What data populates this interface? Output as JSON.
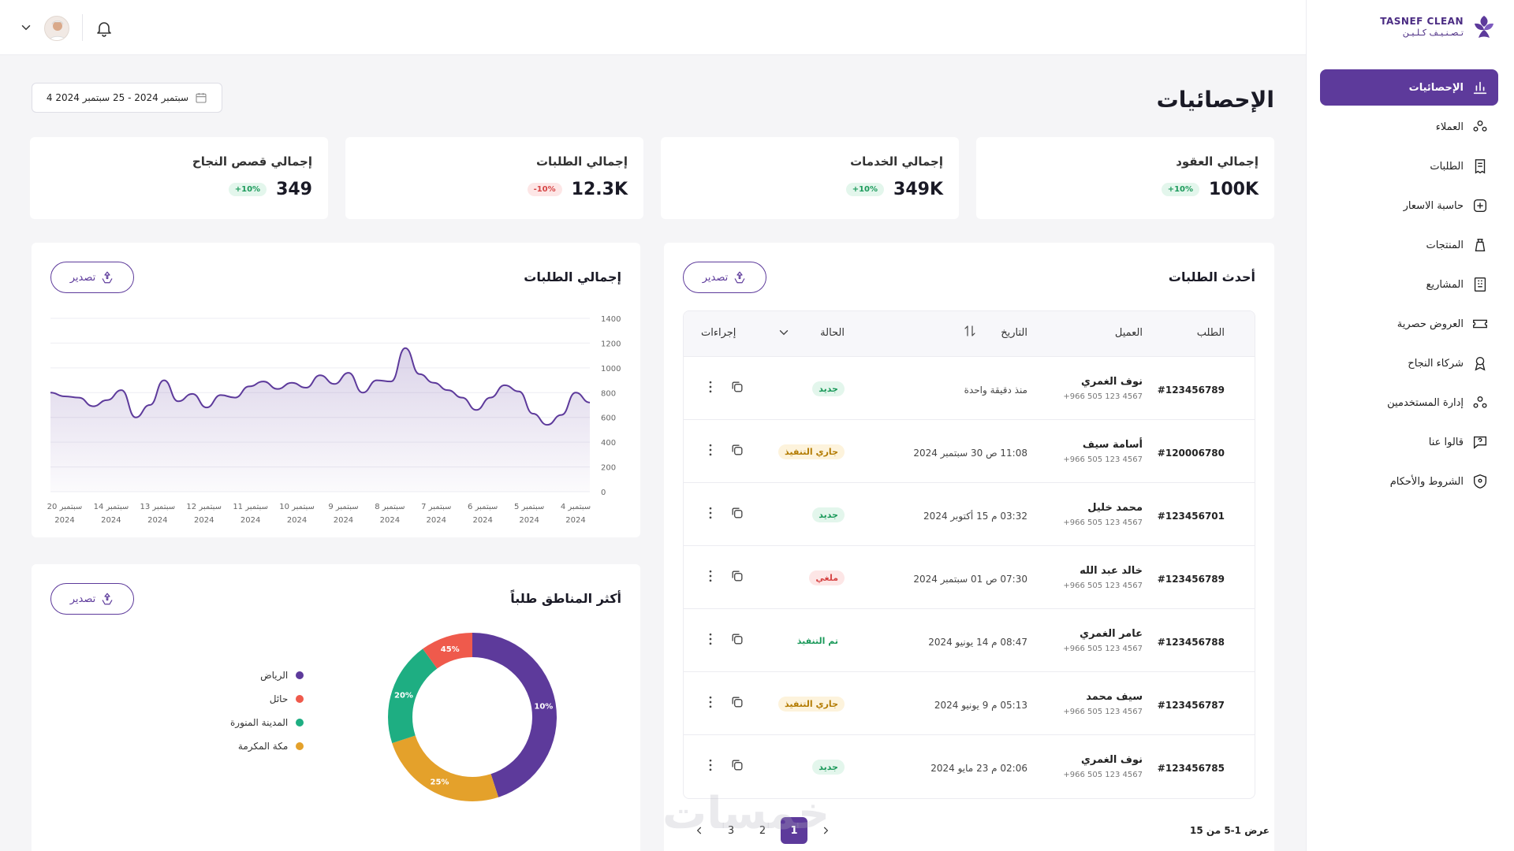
{
  "brand": {
    "name_en": "TASNEF CLEAN",
    "name_ar": "تـصـنـيـف كـلـيـن",
    "accent": "#5d3a9b"
  },
  "sidebar": {
    "items": [
      {
        "label": "الإحصائيات",
        "icon": "bar-chart-icon",
        "active": true
      },
      {
        "label": "العملاء",
        "icon": "users-icon"
      },
      {
        "label": "الطلبات",
        "icon": "receipt-icon"
      },
      {
        "label": "حاسبة الاسعار",
        "icon": "calculator-icon"
      },
      {
        "label": "المنتجات",
        "icon": "spray-bottle-icon"
      },
      {
        "label": "المشاريع",
        "icon": "building-icon"
      },
      {
        "label": "العروض حصرية",
        "icon": "ticket-icon"
      },
      {
        "label": "شركاء النجاح",
        "icon": "award-icon"
      },
      {
        "label": "إدارة المستخدمين",
        "icon": "users-manage-icon"
      },
      {
        "label": "قالوا عنا",
        "icon": "chat-question-icon"
      },
      {
        "label": "الشروط والأحكام",
        "icon": "shield-icon"
      }
    ]
  },
  "header": {
    "title": "الإحصائيات",
    "date_range": "4 سبتمبر 2024 - 25 سبتمبر 2024"
  },
  "kpis": [
    {
      "label": "إجمالي العقود",
      "value": "100K",
      "change": "+10%",
      "trend": "up"
    },
    {
      "label": "إجمالي الخدمات",
      "value": "349K",
      "change": "+10%",
      "trend": "up"
    },
    {
      "label": "إجمالي الطلبات",
      "value": "12.3K",
      "change": "-10%",
      "trend": "down"
    },
    {
      "label": "إجمالي قصص النجاح",
      "value": "349",
      "change": "+10%",
      "trend": "up"
    }
  ],
  "export_label": "تصدير",
  "orders_card": {
    "title": "أحدث الطلبات",
    "columns": {
      "id": "الطلب",
      "client": "العميل",
      "date": "التاريخ",
      "status": "الحالة",
      "actions": "إجراءات"
    },
    "rows": [
      {
        "id": "#123456789",
        "name": "نوف الغمري",
        "phone": "+966 505 123 4567",
        "date": "منذ دقيقة واحدة",
        "status": "جديد",
        "status_type": "new"
      },
      {
        "id": "#120006780",
        "name": "أسامة سيف",
        "phone": "+966 505 123 4567",
        "date": "11:08 ص 30 سبتمبر 2024",
        "status": "جاري التنفيذ",
        "status_type": "progress"
      },
      {
        "id": "#123456701",
        "name": "محمد خليل",
        "phone": "+966 505 123 4567",
        "date": "03:32 م 15 أكتوبر 2024",
        "status": "جديد",
        "status_type": "new"
      },
      {
        "id": "#123456789",
        "name": "خالد عبد الله",
        "phone": "+966 505 123 4567",
        "date": "07:30 ص 01 سبتمبر 2024",
        "status": "ملغي",
        "status_type": "cancel"
      },
      {
        "id": "#123456788",
        "name": "عامر الغمري",
        "phone": "+966 505 123 4567",
        "date": "08:47 م 14 يونيو 2024",
        "status": "تم التنفيذ",
        "status_type": "done"
      },
      {
        "id": "#123456787",
        "name": "سيف محمد",
        "phone": "+966 505 123 4567",
        "date": "05:13 م 9 يونيو 2024",
        "status": "جاري التنفيذ",
        "status_type": "progress"
      },
      {
        "id": "#123456785",
        "name": "نوف الغمري",
        "phone": "+966 505 123 4567",
        "date": "02:06 م 23 مايو 2024",
        "status": "جديد",
        "status_type": "new"
      }
    ],
    "pagination_info": "عرض 1-5 من 15",
    "pages": [
      "1",
      "2",
      "3"
    ],
    "current_page": "1"
  },
  "chart_data": [
    {
      "type": "area",
      "title": "إجمالي الطلبات",
      "ylim": [
        0,
        1400
      ],
      "yticks": [
        "0",
        "200",
        "400",
        "600",
        "800",
        "1000",
        "1200",
        "1400"
      ],
      "xticks": [
        {
          "day": "4 سبتمبر",
          "year": "2024"
        },
        {
          "day": "5 سبتمبر",
          "year": "2024"
        },
        {
          "day": "6 سبتمبر",
          "year": "2024"
        },
        {
          "day": "7 سبتمبر",
          "year": "2024"
        },
        {
          "day": "8 سبتمبر",
          "year": "2024"
        },
        {
          "day": "9 سبتمبر",
          "year": "2024"
        },
        {
          "day": "10 سبتمبر",
          "year": "2024"
        },
        {
          "day": "11 سبتمبر",
          "year": "2024"
        },
        {
          "day": "12 سبتمبر",
          "year": "2024"
        },
        {
          "day": "13 سبتمبر",
          "year": "2024"
        },
        {
          "day": "14 سبتمبر",
          "year": "2024"
        },
        {
          "day": "20 سبتمبر",
          "year": "2024"
        }
      ],
      "values": [
        800,
        770,
        760,
        690,
        740,
        820,
        600,
        700,
        900,
        730,
        790,
        680,
        780,
        760,
        850,
        890,
        830,
        880,
        840,
        940,
        870,
        960,
        800,
        900,
        890,
        1160,
        950,
        880,
        820,
        760,
        660,
        760,
        860,
        810,
        630,
        540,
        620,
        800,
        720
      ],
      "line_color": "#5d3a9b",
      "grid": true
    },
    {
      "type": "pie",
      "title": "أكثر المناطق طلباً",
      "slices": [
        {
          "name": "الرياض",
          "value": 45,
          "color": "#5d3a9b"
        },
        {
          "name": "حائل",
          "value": 10,
          "color": "#ef5a4c"
        },
        {
          "name": "المدينة المنورة",
          "value": 20,
          "color": "#1eae82"
        },
        {
          "name": "مكة المكرمة",
          "value": 25,
          "color": "#e4a12b"
        }
      ],
      "slice_labels": [
        "45%",
        "10%",
        "20%",
        "25%"
      ]
    }
  ]
}
